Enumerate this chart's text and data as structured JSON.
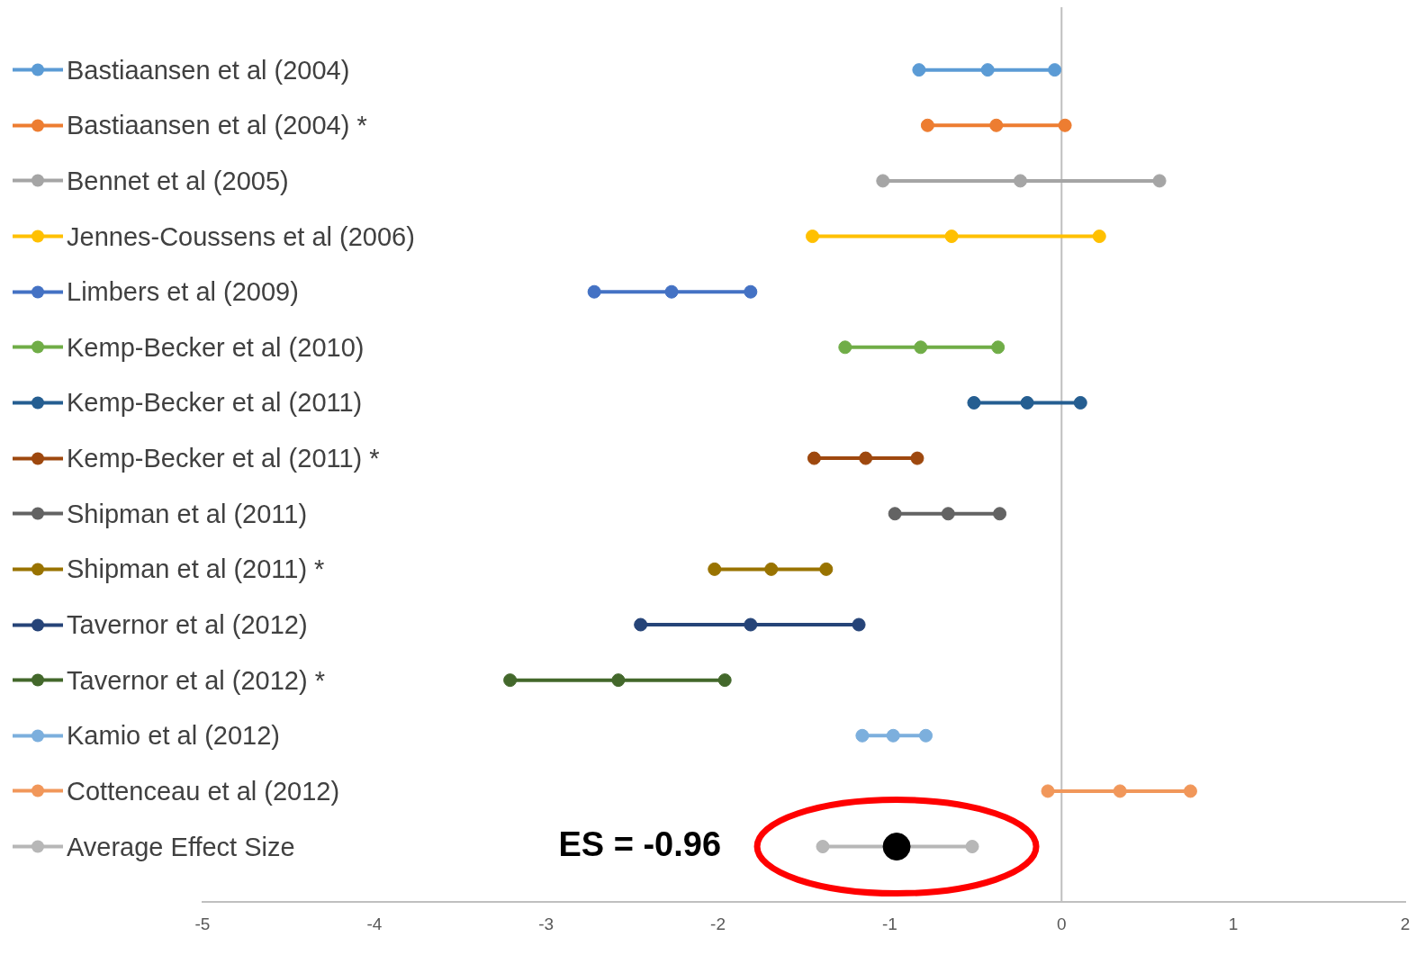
{
  "chart_data": {
    "type": "scatter",
    "orientation": "horizontal",
    "xlim": [
      -5,
      2
    ],
    "xticks": [
      -5,
      -4,
      -3,
      -2,
      -1,
      0,
      1,
      2
    ],
    "grid": false,
    "marker": "circle",
    "categories": [
      "Bastiaansen et al (2004)",
      "Bastiaansen et al (2004) *",
      "Bennet et al (2005)",
      "Jennes-Coussens et al (2006)",
      "Limbers et al (2009)",
      "Kemp-Becker et al (2010)",
      "Kemp-Becker et al (2011)",
      "Kemp-Becker et al (2011) *",
      "Shipman et al (2011)",
      "Shipman et al (2011) *",
      "Tavernor et al (2012)",
      "Tavernor et al (2012) *",
      "Kamio et al (2012)",
      "Cottenceau et al (2012)",
      "Average Effect Size"
    ],
    "series": [
      {
        "colors": [
          "#5b9bd5",
          "#ed7d31",
          "#a5a5a5",
          "#ffc000",
          "#4472c4",
          "#70ad47",
          "#255e91",
          "#9e480e",
          "#636363",
          "#997300",
          "#264478",
          "#43682b",
          "#7cafdd",
          "#f1975a",
          "#b7b7b7"
        ],
        "values": [
          -0.43,
          -0.38,
          -0.24,
          -0.64,
          -2.27,
          -0.82,
          -0.2,
          -1.14,
          -0.66,
          -1.69,
          -1.81,
          -2.58,
          -0.98,
          0.34,
          null
        ]
      },
      {
        "colors": [
          "#5b9bd5",
          "#ed7d31",
          "#a5a5a5",
          "#ffc000",
          "#4472c4",
          "#70ad47",
          "#255e91",
          "#9e480e",
          "#636363",
          "#997300",
          "#264478",
          "#43682b",
          "#7cafdd",
          "#f1975a",
          "#b7b7b7"
        ],
        "values": [
          -0.83,
          -0.78,
          -1.04,
          -1.45,
          -2.72,
          -1.26,
          -0.51,
          -1.44,
          -0.97,
          -2.02,
          -2.45,
          -3.21,
          -1.16,
          -0.08,
          -1.39
        ]
      },
      {
        "colors": [
          "#5b9bd5",
          "#ed7d31",
          "#a5a5a5",
          "#ffc000",
          "#4472c4",
          "#70ad47",
          "#255e91",
          "#9e480e",
          "#636363",
          "#997300",
          "#264478",
          "#43682b",
          "#7cafdd",
          "#f1975a",
          "#b7b7b7"
        ],
        "values": [
          -0.04,
          0.02,
          0.57,
          0.22,
          -1.81,
          -0.37,
          0.11,
          -0.84,
          -0.36,
          -1.37,
          -1.18,
          -1.96,
          -0.79,
          0.75,
          -0.52
        ]
      },
      {
        "color": "#000000",
        "values": [
          null,
          null,
          null,
          null,
          null,
          null,
          null,
          null,
          null,
          null,
          null,
          null,
          null,
          null,
          -0.96
        ]
      }
    ],
    "ref_lines": [
      {
        "axis": "x",
        "value": 0,
        "color": "#bfbfbf"
      }
    ],
    "annotations": [
      "ES = -0.96"
    ]
  }
}
